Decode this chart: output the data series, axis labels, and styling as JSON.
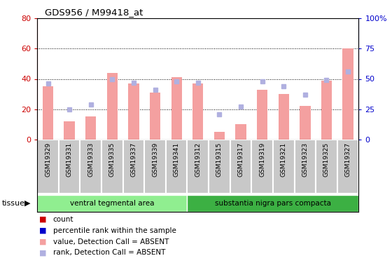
{
  "title": "GDS956 / M99418_at",
  "samples": [
    "GSM19329",
    "GSM19331",
    "GSM19333",
    "GSM19335",
    "GSM19337",
    "GSM19339",
    "GSM19341",
    "GSM19312",
    "GSM19315",
    "GSM19317",
    "GSM19319",
    "GSM19321",
    "GSM19323",
    "GSM19325",
    "GSM19327"
  ],
  "bar_values": [
    35,
    12,
    15,
    44,
    37,
    31,
    41,
    37,
    5,
    10,
    33,
    30,
    22,
    39,
    60
  ],
  "rank_values": [
    46,
    25,
    29,
    50,
    47,
    41,
    48,
    47,
    21,
    27,
    48,
    44,
    37,
    49,
    56
  ],
  "bar_color_absent": "#f4a0a0",
  "rank_color_absent": "#b0b0e0",
  "ylim_left": [
    0,
    80
  ],
  "ylim_right": [
    0,
    100
  ],
  "yticks_left": [
    0,
    20,
    40,
    60,
    80
  ],
  "ytick_labels_left": [
    "0",
    "20",
    "40",
    "60",
    "80"
  ],
  "yticks_right": [
    0,
    25,
    50,
    75,
    100
  ],
  "ytick_labels_right": [
    "0",
    "25",
    "50",
    "75",
    "100%"
  ],
  "groups": [
    {
      "label": "ventral tegmental area",
      "start": 0,
      "end": 7,
      "color": "#90EE90"
    },
    {
      "label": "substantia nigra pars compacta",
      "start": 7,
      "end": 15,
      "color": "#3CB043"
    }
  ],
  "tissue_label": "tissue",
  "sample_bg_color": "#c8c8c8",
  "plot_bg": "#ffffff",
  "left_axis_color": "#cc0000",
  "right_axis_color": "#0000cc",
  "legend_items": [
    {
      "label": "count",
      "color": "#cc0000"
    },
    {
      "label": "percentile rank within the sample",
      "color": "#0000cc"
    },
    {
      "label": "value, Detection Call = ABSENT",
      "color": "#f4a0a0"
    },
    {
      "label": "rank, Detection Call = ABSENT",
      "color": "#b0b0e0"
    }
  ]
}
